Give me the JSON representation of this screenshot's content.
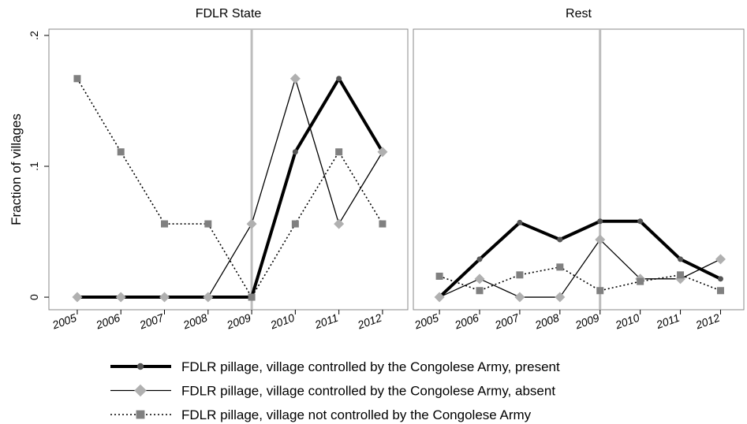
{
  "chart_data": [
    {
      "type": "line",
      "title": "FDLR State",
      "y_label": "Fraction of villages",
      "x": [
        2005,
        2006,
        2007,
        2008,
        2009,
        2010,
        2011,
        2012
      ],
      "xlim": [
        2004.35,
        2012.58
      ],
      "xticks": [
        2005,
        2006,
        2007,
        2008,
        2009,
        2010,
        2011,
        2012
      ],
      "ylim": [
        -0.0096,
        0.2048
      ],
      "yticks": [
        0,
        {
          "value": 0.1,
          "label": ".1"
        },
        {
          "value": 0.2,
          "label": ".2"
        }
      ],
      "vline": 2009,
      "vline_color": "#bdbdbd",
      "series": [
        {
          "name": "FDLR pillage, village controlled by the Congolese Army, present",
          "color": "#000000",
          "marker_color": "#555555",
          "marker": "circle",
          "line_width": 4,
          "dashed": false,
          "values": [
            0,
            0,
            0,
            0,
            0,
            0.111,
            0.167,
            0.111
          ]
        },
        {
          "name": "FDLR pillage, village controlled by the Congolese Army, absent",
          "color": "#000000",
          "marker_color": "#b0b0b0",
          "marker": "diamond",
          "line_width": 1.3,
          "dashed": false,
          "values": [
            0,
            0,
            0,
            0,
            0.056,
            0.167,
            0.056,
            0.111
          ]
        },
        {
          "name": "FDLR pillage, village not controlled by the Congolese Army",
          "color": "#000000",
          "marker_color": "#808080",
          "marker": "square",
          "line_width": 1.6,
          "dashed": true,
          "values": [
            0.167,
            0.111,
            0.056,
            0.056,
            0,
            0.056,
            0.111,
            0.056
          ]
        }
      ]
    },
    {
      "type": "line",
      "title": "Rest",
      "x": [
        2005,
        2006,
        2007,
        2008,
        2009,
        2010,
        2011,
        2012
      ],
      "xlim": [
        2004.35,
        2012.58
      ],
      "xticks": [
        2005,
        2006,
        2007,
        2008,
        2009,
        2010,
        2011,
        2012
      ],
      "ylim": [
        -0.0096,
        0.2048
      ],
      "vline": 2009,
      "vline_color": "#bdbdbd",
      "series": [
        {
          "color": "#000000",
          "marker_color": "#555555",
          "marker": "circle",
          "line_width": 4,
          "dashed": false,
          "values": [
            0,
            0.029,
            0.057,
            0.044,
            0.058,
            0.058,
            0.029,
            0.014
          ]
        },
        {
          "color": "#000000",
          "marker_color": "#b0b0b0",
          "marker": "diamond",
          "line_width": 1.3,
          "dashed": false,
          "values": [
            0,
            0.014,
            0,
            0,
            0.044,
            0.014,
            0.014,
            0.029
          ]
        },
        {
          "color": "#000000",
          "marker_color": "#808080",
          "marker": "square",
          "line_width": 1.6,
          "dashed": true,
          "values": [
            0.016,
            0.005,
            0.017,
            0.023,
            0.005,
            0.012,
            0.017,
            0.005
          ]
        }
      ]
    }
  ]
}
